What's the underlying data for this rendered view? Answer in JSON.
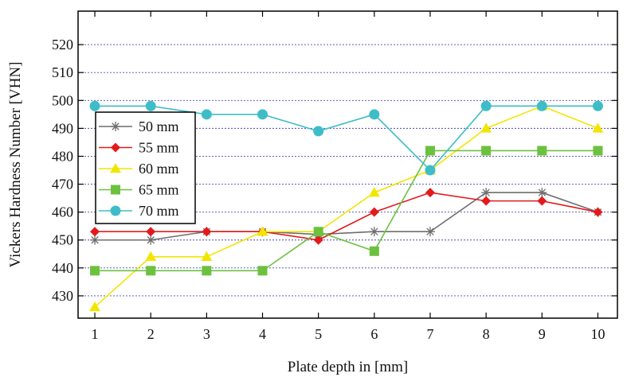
{
  "chart_data": {
    "type": "line",
    "title": "",
    "xlabel": "Plate depth in [mm]",
    "ylabel": "Vickers Hardness Number [VHN]",
    "x": [
      1,
      2,
      3,
      4,
      5,
      6,
      7,
      8,
      9,
      10
    ],
    "x_ticks": [
      "1",
      "2",
      "3",
      "4",
      "5",
      "6",
      "7",
      "8",
      "9",
      "10"
    ],
    "xlim": [
      0.7,
      10.35
    ],
    "ylim": [
      422,
      532
    ],
    "y_ticks": [
      "430",
      "440",
      "450",
      "460",
      "470",
      "480",
      "490",
      "500",
      "510",
      "520"
    ],
    "grid": "horizontal dotted",
    "legend_position": "left",
    "series": [
      {
        "name": "50 mm",
        "color": "#6d6d6d",
        "marker": "asterisk",
        "values": [
          450,
          450,
          453,
          453,
          452,
          453,
          453,
          467,
          467,
          460
        ]
      },
      {
        "name": "55 mm",
        "color": "#e31a1c",
        "marker": "diamond",
        "values": [
          453,
          453,
          453,
          453,
          450,
          460,
          467,
          464,
          464,
          460
        ]
      },
      {
        "name": "60 mm",
        "color": "#f2e600",
        "marker": "triangle",
        "values": [
          426,
          444,
          444,
          453,
          453,
          467,
          475,
          490,
          498,
          490
        ]
      },
      {
        "name": "65 mm",
        "color": "#6cc13f",
        "marker": "square",
        "values": [
          439,
          439,
          439,
          439,
          453,
          446,
          482,
          482,
          482,
          482
        ]
      },
      {
        "name": "70 mm",
        "color": "#3ebdc8",
        "marker": "circle",
        "values": [
          498,
          498,
          495,
          495,
          489,
          495,
          475,
          498,
          498,
          498
        ]
      }
    ]
  }
}
